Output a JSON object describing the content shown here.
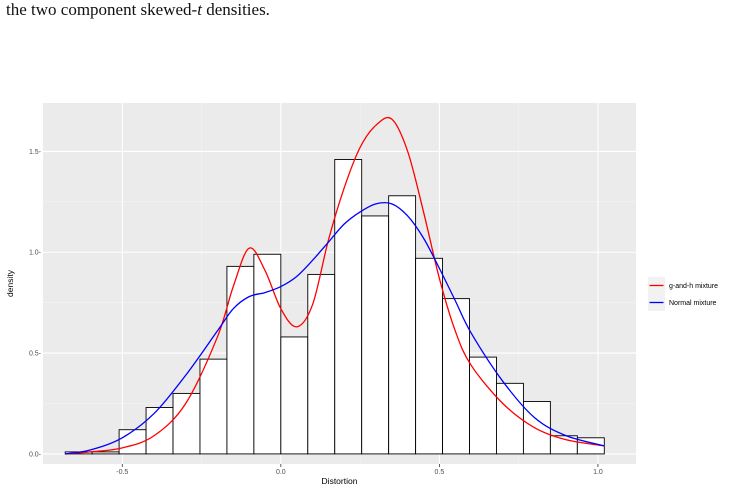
{
  "caption": {
    "prefix": "the two component skewed-",
    "italic": "t",
    "suffix": " densities."
  },
  "colors": {
    "panel": "#ebebeb",
    "grid_major": "#ffffff",
    "grid_minor": "#f5f5f5",
    "bar_fill": "#ffffff",
    "bar_stroke": "#000000",
    "gh_curve": "#ff0000",
    "normal_curve": "#0000ff"
  },
  "chart_data": {
    "type": "bar",
    "xlabel": "Distortion",
    "ylabel": "density",
    "xlim": [
      -0.75,
      1.12
    ],
    "ylim": [
      -0.05,
      1.74
    ],
    "x_ticks": [
      -0.5,
      0.0,
      0.5,
      1.0
    ],
    "x_tick_labels": [
      "-0.5",
      "0.0",
      "0.5",
      "1.0"
    ],
    "y_ticks": [
      0.0,
      0.5,
      1.0,
      1.5
    ],
    "y_tick_labels": [
      "0.0-",
      "0.5-",
      "1.0-",
      "1.5-"
    ],
    "grid": true,
    "legend_position": "right",
    "bin_width": 0.085,
    "bins": [
      {
        "x0": -0.68,
        "height": 0.01
      },
      {
        "x0": -0.595,
        "height": 0.01
      },
      {
        "x0": -0.51,
        "height": 0.12
      },
      {
        "x0": -0.425,
        "height": 0.23
      },
      {
        "x0": -0.34,
        "height": 0.3
      },
      {
        "x0": -0.255,
        "height": 0.47
      },
      {
        "x0": -0.17,
        "height": 0.93
      },
      {
        "x0": -0.085,
        "height": 0.99
      },
      {
        "x0": 0.0,
        "height": 0.58
      },
      {
        "x0": 0.085,
        "height": 0.89
      },
      {
        "x0": 0.17,
        "height": 1.46
      },
      {
        "x0": 0.255,
        "height": 1.18
      },
      {
        "x0": 0.34,
        "height": 1.28
      },
      {
        "x0": 0.425,
        "height": 0.97
      },
      {
        "x0": 0.51,
        "height": 0.77
      },
      {
        "x0": 0.595,
        "height": 0.48
      },
      {
        "x0": 0.68,
        "height": 0.35
      },
      {
        "x0": 0.765,
        "height": 0.26
      },
      {
        "x0": 0.85,
        "height": 0.09
      },
      {
        "x0": 0.935,
        "height": 0.08
      }
    ],
    "series": [
      {
        "name": "g-and-h mixture",
        "color": "#ff0000",
        "x": [
          -0.68,
          -0.6,
          -0.5,
          -0.4,
          -0.3,
          -0.2,
          -0.15,
          -0.1,
          -0.05,
          0.0,
          0.05,
          0.1,
          0.15,
          0.2,
          0.25,
          0.3,
          0.35,
          0.4,
          0.45,
          0.5,
          0.55,
          0.6,
          0.7,
          0.8,
          0.9,
          1.02
        ],
        "values": [
          0.0,
          0.01,
          0.03,
          0.09,
          0.25,
          0.58,
          0.83,
          1.02,
          0.91,
          0.72,
          0.63,
          0.74,
          1.06,
          1.32,
          1.52,
          1.63,
          1.66,
          1.5,
          1.2,
          0.87,
          0.61,
          0.44,
          0.25,
          0.13,
          0.07,
          0.04
        ]
      },
      {
        "name": "Normal mixture",
        "color": "#0000ff",
        "x": [
          -0.68,
          -0.6,
          -0.5,
          -0.4,
          -0.3,
          -0.2,
          -0.15,
          -0.1,
          -0.05,
          0.0,
          0.05,
          0.1,
          0.15,
          0.2,
          0.25,
          0.3,
          0.35,
          0.4,
          0.45,
          0.5,
          0.55,
          0.6,
          0.7,
          0.8,
          0.9,
          1.02
        ],
        "values": [
          0.0,
          0.02,
          0.08,
          0.2,
          0.39,
          0.61,
          0.72,
          0.78,
          0.8,
          0.83,
          0.88,
          0.96,
          1.05,
          1.14,
          1.2,
          1.24,
          1.24,
          1.18,
          1.07,
          0.92,
          0.76,
          0.6,
          0.36,
          0.18,
          0.09,
          0.04
        ]
      }
    ]
  }
}
